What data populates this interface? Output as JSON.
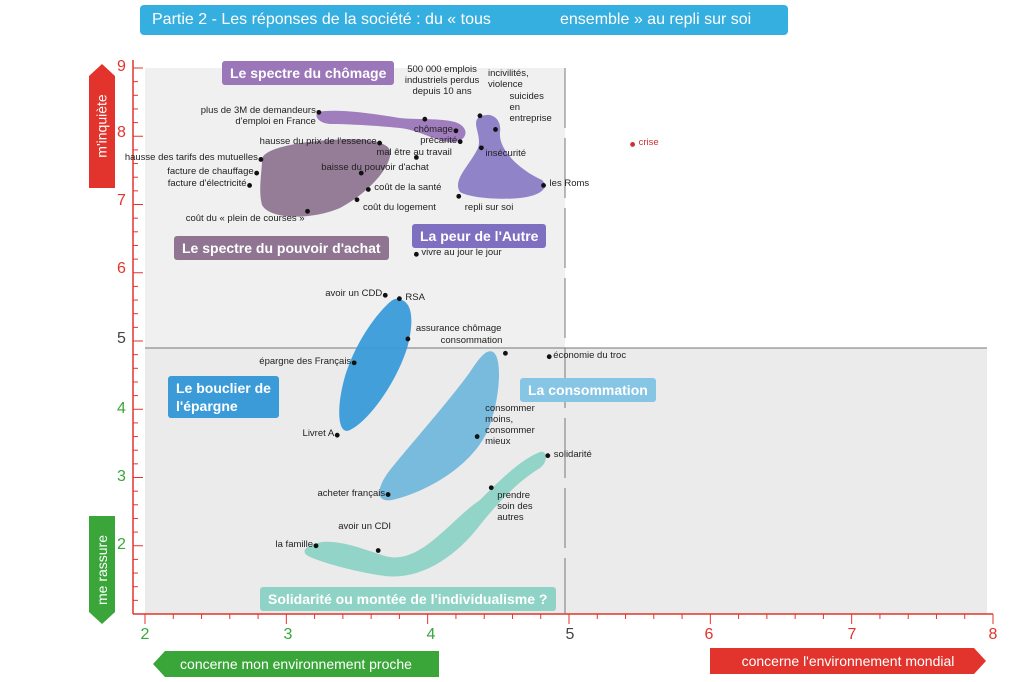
{
  "title": {
    "part1": "Partie 2 - Les réponses de la société : du « tous",
    "part2": "ensemble » au repli sur soi"
  },
  "axes": {
    "x_left_label": "concerne mon environnement proche",
    "x_right_label": "concerne l'environnement mondial",
    "y_top_label": "m'inquiète",
    "y_bottom_label": "me rassure",
    "x_ticks": [
      "2",
      "3",
      "4",
      "5",
      "6",
      "7",
      "8"
    ],
    "y_ticks": [
      "9",
      "8",
      "7",
      "6",
      "5",
      "4",
      "3",
      "2"
    ]
  },
  "colors": {
    "chomage": "#9b76b8",
    "pouvoir": "#8f7591",
    "autre": "#8b7cc4",
    "epargne": "#3a9bd8",
    "consommation": "#72b8dc",
    "solidarite": "#8ed3c6",
    "shade": "#ececec",
    "axis_red": "#e2342d",
    "axis_green": "#3aa63a"
  },
  "categories": [
    {
      "key": "chomage",
      "label": "Le spectre du chômage"
    },
    {
      "key": "pouvoir",
      "label": "Le spectre du pouvoir d'achat"
    },
    {
      "key": "autre",
      "label": "La peur de l'Autre"
    },
    {
      "key": "epargne",
      "label": "Le bouclier de\nl'épargne"
    },
    {
      "key": "consommation",
      "label": "La consommation"
    },
    {
      "key": "solidarite",
      "label": "Solidarité ou montée de l'individualisme ?"
    }
  ],
  "chart_data": {
    "type": "scatter",
    "xlim": [
      2,
      8
    ],
    "ylim": [
      1,
      9
    ],
    "points": [
      {
        "label": "plus de 3M de demandeurs\nd'emploi en France",
        "x": 3.23,
        "y": 8.35
      },
      {
        "label": "500 000 emplois\nindustriels perdus\ndepuis 10 ans",
        "x": 3.98,
        "y": 8.25
      },
      {
        "label": "incivilités,\nviolence",
        "x": 4.37,
        "y": 8.3
      },
      {
        "label": "suicides\nen\nentreprise",
        "x": 4.48,
        "y": 8.1
      },
      {
        "label": "hausse du prix de l'essence",
        "x": 3.66,
        "y": 7.9
      },
      {
        "label": "hausse des tarifs des mutuelles",
        "x": 2.82,
        "y": 7.66
      },
      {
        "label": "chômage",
        "x": 4.2,
        "y": 8.08
      },
      {
        "label": "précarité",
        "x": 4.23,
        "y": 7.92
      },
      {
        "label": "insécurité",
        "x": 4.38,
        "y": 7.83
      },
      {
        "label": "mal être au travail",
        "x": 3.92,
        "y": 7.69
      },
      {
        "label": "facture de chauffage",
        "x": 2.79,
        "y": 7.46
      },
      {
        "label": "baisse du pouvoir d'achat",
        "x": 3.53,
        "y": 7.46
      },
      {
        "label": "facture d'électricité",
        "x": 2.74,
        "y": 7.28
      },
      {
        "label": "les Roms",
        "x": 4.82,
        "y": 7.28
      },
      {
        "label": "coût de la santé",
        "x": 3.58,
        "y": 7.22
      },
      {
        "label": "coût du logement",
        "x": 3.5,
        "y": 7.07
      },
      {
        "label": "repli sur soi",
        "x": 4.22,
        "y": 7.12
      },
      {
        "label": "coût du « plein de courses »",
        "x": 3.15,
        "y": 6.9
      },
      {
        "label": "vivre au jour le jour",
        "x": 3.92,
        "y": 6.27
      },
      {
        "label": "avoir un CDD",
        "x": 3.7,
        "y": 5.67
      },
      {
        "label": "RSA",
        "x": 3.8,
        "y": 5.62
      },
      {
        "label": "assurance chômage",
        "x": 3.86,
        "y": 5.03
      },
      {
        "label": "consommation",
        "x": 4.55,
        "y": 4.82
      },
      {
        "label": "économie du troc",
        "x": 4.86,
        "y": 4.77
      },
      {
        "label": "épargne des Français",
        "x": 3.48,
        "y": 4.68
      },
      {
        "label": "Livret A",
        "x": 3.36,
        "y": 3.62
      },
      {
        "label": "consommer\nmoins,\nconsommer\nmieux",
        "x": 4.35,
        "y": 3.6
      },
      {
        "label": "solidarité",
        "x": 4.85,
        "y": 3.32
      },
      {
        "label": "acheter français",
        "x": 3.72,
        "y": 2.75
      },
      {
        "label": "prendre\nsoin des\nautres",
        "x": 4.45,
        "y": 2.85
      },
      {
        "label": "avoir un CDI",
        "x": 3.65,
        "y": 1.93
      },
      {
        "label": "la famille",
        "x": 3.21,
        "y": 2.0
      },
      {
        "label": "crise",
        "x": 5.45,
        "y": 7.88
      }
    ]
  }
}
